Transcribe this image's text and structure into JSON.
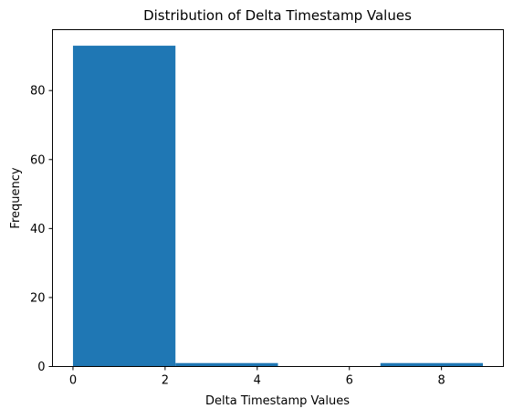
{
  "chart_data": {
    "type": "bar",
    "title": "Distribution of Delta Timestamp Values",
    "xlabel": "Delta Timestamp Values",
    "ylabel": "Frequency",
    "bins": [
      {
        "start": 0.0,
        "end": 2.225,
        "count": 93
      },
      {
        "start": 2.225,
        "end": 4.45,
        "count": 1
      },
      {
        "start": 4.45,
        "end": 6.675,
        "count": 0
      },
      {
        "start": 6.675,
        "end": 8.9,
        "count": 1
      }
    ],
    "xlim": [
      -0.445,
      9.345
    ],
    "ylim": [
      0,
      97.65
    ],
    "xticks": [
      0,
      2,
      4,
      6,
      8
    ],
    "yticks": [
      0,
      20,
      40,
      60,
      80
    ],
    "bar_color": "#1f77b4",
    "grid": false,
    "legend": "none"
  }
}
